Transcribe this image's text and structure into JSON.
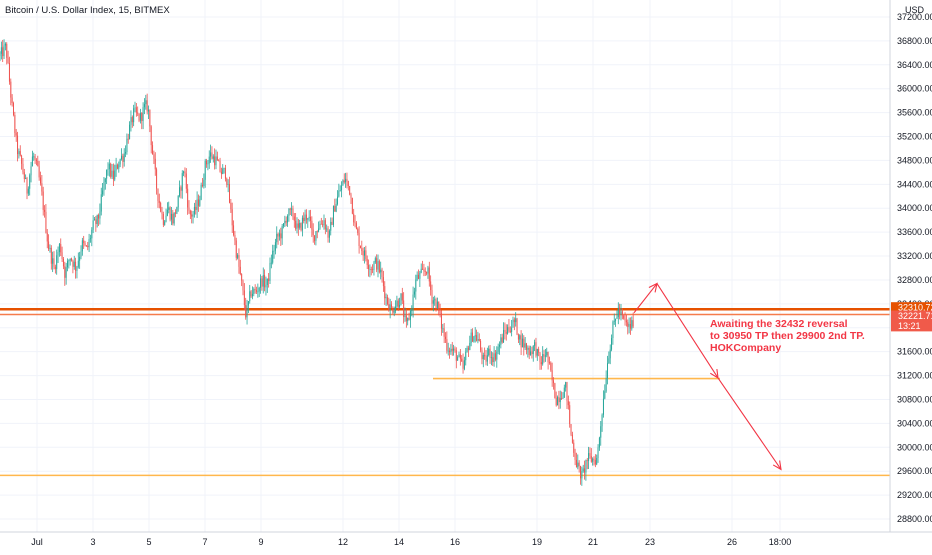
{
  "chart_data": {
    "type": "candlestick",
    "title": "Bitcoin / U.S. Dollar Index, 15, BITMEX",
    "currency": "USD",
    "ylim": [
      28500,
      37200
    ],
    "y_ticks": [
      28800,
      29200,
      29600,
      30000,
      30400,
      30800,
      31200,
      31600,
      32000,
      32400,
      32800,
      33200,
      33600,
      34000,
      34400,
      34800,
      35200,
      35600,
      36000,
      36400,
      36800,
      37200
    ],
    "grid": true,
    "x_ticks": [
      {
        "label": "Jul",
        "t": 37
      },
      {
        "label": "3",
        "t": 93
      },
      {
        "label": "5",
        "t": 149
      },
      {
        "label": "7",
        "t": 205
      },
      {
        "label": "9",
        "t": 261
      },
      {
        "label": "12",
        "t": 343
      },
      {
        "label": "14",
        "t": 399
      },
      {
        "label": "16",
        "t": 455
      },
      {
        "label": "19",
        "t": 537
      },
      {
        "label": "21",
        "t": 593
      },
      {
        "label": "23",
        "t": 650
      },
      {
        "label": "26",
        "t": 732
      },
      {
        "label": "18:00",
        "t": 780
      }
    ],
    "x_range": [
      0,
      890
    ],
    "path": [
      [
        0,
        36550
      ],
      [
        6,
        36700
      ],
      [
        12,
        35700
      ],
      [
        17,
        35000
      ],
      [
        22,
        34700
      ],
      [
        27,
        34300
      ],
      [
        33,
        34900
      ],
      [
        38,
        34600
      ],
      [
        42,
        34200
      ],
      [
        48,
        33400
      ],
      [
        54,
        33000
      ],
      [
        60,
        33400
      ],
      [
        65,
        32900
      ],
      [
        70,
        33200
      ],
      [
        76,
        33000
      ],
      [
        82,
        33400
      ],
      [
        87,
        33300
      ],
      [
        93,
        33700
      ],
      [
        98,
        33800
      ],
      [
        103,
        34300
      ],
      [
        108,
        34700
      ],
      [
        113,
        34500
      ],
      [
        119,
        34800
      ],
      [
        124,
        34900
      ],
      [
        129,
        35300
      ],
      [
        134,
        35600
      ],
      [
        140,
        35500
      ],
      [
        145,
        35700
      ],
      [
        148,
        35700
      ],
      [
        152,
        35000
      ],
      [
        157,
        34300
      ],
      [
        163,
        33800
      ],
      [
        168,
        34000
      ],
      [
        173,
        33800
      ],
      [
        178,
        34100
      ],
      [
        184,
        34700
      ],
      [
        189,
        33900
      ],
      [
        194,
        33900
      ],
      [
        200,
        34200
      ],
      [
        205,
        34700
      ],
      [
        210,
        34900
      ],
      [
        216,
        34800
      ],
      [
        221,
        34600
      ],
      [
        226,
        34600
      ],
      [
        231,
        33900
      ],
      [
        236,
        33300
      ],
      [
        241,
        32800
      ],
      [
        246,
        32200
      ],
      [
        251,
        32600
      ],
      [
        256,
        32600
      ],
      [
        262,
        32800
      ],
      [
        267,
        32700
      ],
      [
        272,
        33200
      ],
      [
        277,
        33500
      ],
      [
        282,
        33600
      ],
      [
        287,
        33900
      ],
      [
        293,
        33900
      ],
      [
        298,
        33600
      ],
      [
        303,
        33800
      ],
      [
        308,
        33900
      ],
      [
        313,
        33500
      ],
      [
        318,
        33700
      ],
      [
        324,
        33800
      ],
      [
        329,
        33500
      ],
      [
        334,
        34000
      ],
      [
        340,
        34300
      ],
      [
        345,
        34500
      ],
      [
        350,
        34300
      ],
      [
        355,
        33700
      ],
      [
        360,
        33400
      ],
      [
        365,
        33200
      ],
      [
        371,
        33000
      ],
      [
        376,
        33100
      ],
      [
        381,
        32900
      ],
      [
        386,
        32500
      ],
      [
        391,
        32300
      ],
      [
        396,
        32400
      ],
      [
        401,
        32500
      ],
      [
        406,
        32000
      ],
      [
        411,
        32300
      ],
      [
        416,
        32800
      ],
      [
        422,
        32900
      ],
      [
        427,
        33000
      ],
      [
        432,
        32500
      ],
      [
        437,
        32400
      ],
      [
        442,
        32000
      ],
      [
        447,
        31700
      ],
      [
        453,
        31600
      ],
      [
        458,
        31500
      ],
      [
        463,
        31300
      ],
      [
        468,
        31700
      ],
      [
        473,
        31900
      ],
      [
        478,
        31800
      ],
      [
        484,
        31400
      ],
      [
        489,
        31600
      ],
      [
        494,
        31500
      ],
      [
        499,
        31700
      ],
      [
        504,
        31900
      ],
      [
        509,
        32000
      ],
      [
        515,
        32100
      ],
      [
        520,
        31800
      ],
      [
        525,
        31700
      ],
      [
        530,
        31600
      ],
      [
        535,
        31700
      ],
      [
        540,
        31400
      ],
      [
        546,
        31600
      ],
      [
        551,
        31200
      ],
      [
        556,
        30800
      ],
      [
        561,
        30900
      ],
      [
        566,
        31000
      ],
      [
        571,
        30200
      ],
      [
        577,
        29700
      ],
      [
        582,
        29500
      ],
      [
        587,
        29800
      ],
      [
        592,
        29800
      ],
      [
        597,
        29800
      ],
      [
        602,
        30600
      ],
      [
        608,
        31500
      ],
      [
        613,
        32000
      ],
      [
        618,
        32300
      ],
      [
        624,
        32100
      ],
      [
        629,
        32000
      ],
      [
        634,
        32100
      ]
    ],
    "levels": [
      {
        "price": 32310.72,
        "color": "#e65100",
        "thick": true
      },
      {
        "price": 32221.71,
        "color": "#f57c4d",
        "thick": false
      },
      {
        "price": 31150,
        "color": "#ffb74d",
        "t_start": 433,
        "t_end": 720,
        "thick": false
      },
      {
        "price": 29530,
        "color": "#ffb74d",
        "thick": false
      }
    ],
    "price_labels": [
      {
        "text": "32310.72",
        "price": 32310.72,
        "color": "#e65100"
      },
      {
        "text": "32221.71",
        "price": 32221.71,
        "color": "#f05a4a"
      },
      {
        "text": "13:21",
        "price": 32090,
        "color": "#f05a4a"
      }
    ],
    "projection": [
      [
        634,
        32250
      ],
      [
        657,
        32740
      ],
      [
        718,
        31160
      ],
      [
        781,
        29630
      ]
    ],
    "annotation": {
      "lines": [
        "Awaiting the 32432 reversal",
        "to 30950 TP then 29900 2nd TP.",
        "HOKCompany"
      ],
      "color": "#f23645"
    },
    "colors": {
      "up": "#26a69a",
      "down": "#ef5350",
      "grid": "#f0f3fa",
      "axis_text": "#131722",
      "projection": "#f23645"
    }
  }
}
